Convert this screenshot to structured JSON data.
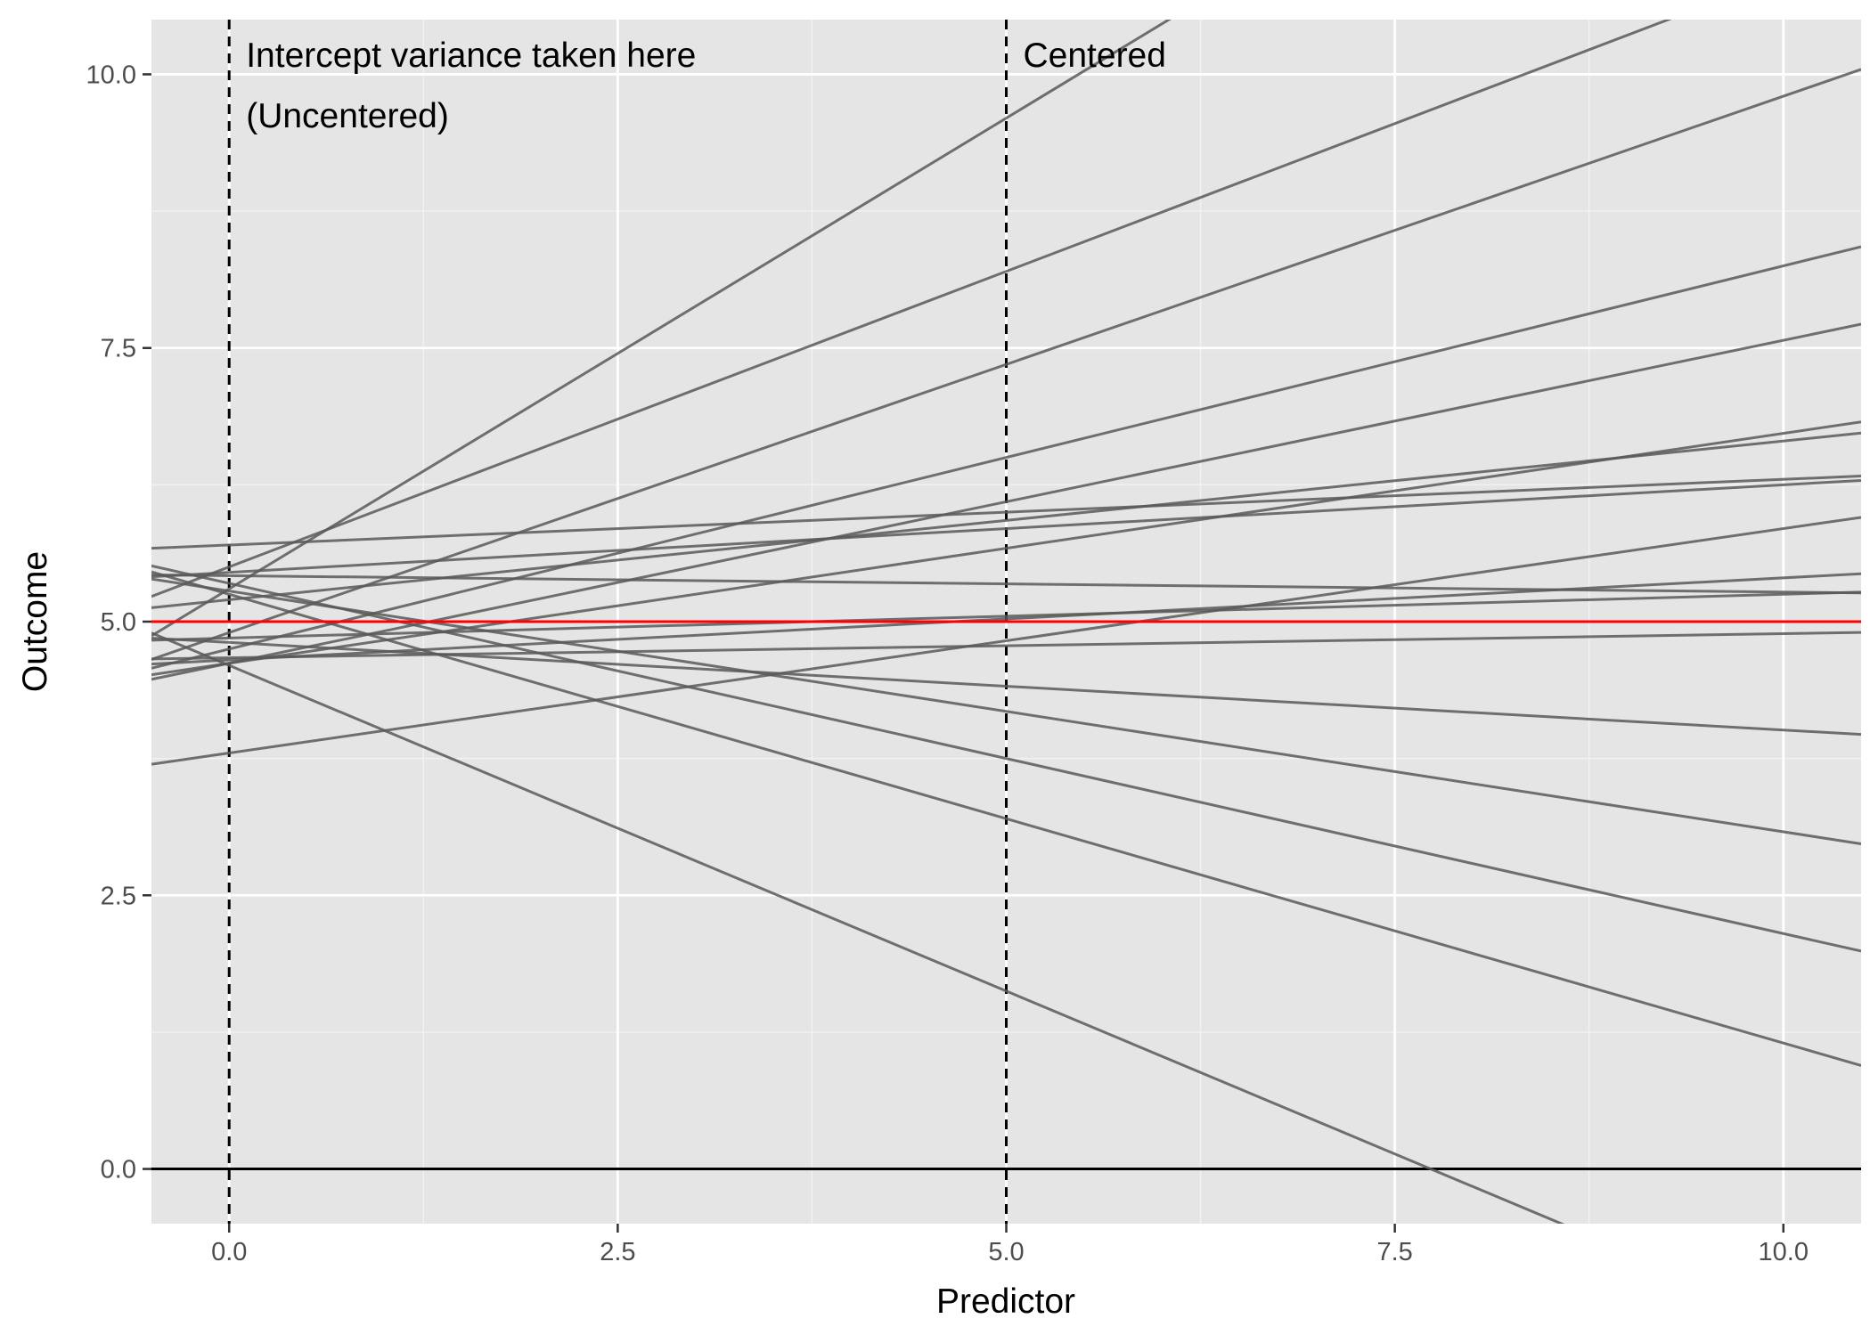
{
  "chart_data": {
    "type": "line",
    "title": "",
    "xlabel": "Predictor",
    "ylabel": "Outcome",
    "xlim": [
      -0.5,
      10.5
    ],
    "ylim": [
      -0.5,
      10.5
    ],
    "x_ticks": [
      0,
      2.5,
      5,
      7.5,
      10
    ],
    "x_tick_labels": [
      "0.0",
      "2.5",
      "5.0",
      "7.5",
      "10.0"
    ],
    "y_ticks": [
      0,
      2.5,
      5,
      7.5,
      10
    ],
    "y_tick_labels": [
      "0.0",
      "2.5",
      "5.0",
      "7.5",
      "10.0"
    ],
    "grid": true,
    "series_color": "#595959",
    "mean_line": {
      "intercept": 5.0,
      "slope": 0.0,
      "color": "#ff0000"
    },
    "zero_line": {
      "y": 0,
      "color": "#000000"
    },
    "vlines": [
      {
        "x": 0,
        "style": "dashed",
        "label_lines": [
          "Intercept variance taken here",
          "(Uncentered)"
        ]
      },
      {
        "x": 5,
        "style": "dashed",
        "label_lines": [
          "Centered"
        ]
      }
    ],
    "lines": [
      {
        "intercept": 5.3,
        "slope": 0.86
      },
      {
        "intercept": 5.5,
        "slope": 0.54
      },
      {
        "intercept": 4.9,
        "slope": 0.49
      },
      {
        "intercept": 4.75,
        "slope": 0.35
      },
      {
        "intercept": 4.62,
        "slope": 0.295
      },
      {
        "intercept": 5.2,
        "slope": 0.145
      },
      {
        "intercept": 4.62,
        "slope": 0.21
      },
      {
        "intercept": 5.7,
        "slope": 0.06
      },
      {
        "intercept": 5.45,
        "slope": 0.08
      },
      {
        "intercept": 3.8,
        "slope": 0.205
      },
      {
        "intercept": 4.65,
        "slope": 0.075
      },
      {
        "intercept": 5.42,
        "slope": -0.015
      },
      {
        "intercept": 4.85,
        "slope": 0.04
      },
      {
        "intercept": 4.67,
        "slope": 0.022
      },
      {
        "intercept": 4.81,
        "slope": -0.08
      },
      {
        "intercept": 5.28,
        "slope": -0.22
      },
      {
        "intercept": 5.35,
        "slope": -0.32
      },
      {
        "intercept": 5.25,
        "slope": -0.41
      },
      {
        "intercept": 4.6,
        "slope": -0.595
      }
    ]
  }
}
